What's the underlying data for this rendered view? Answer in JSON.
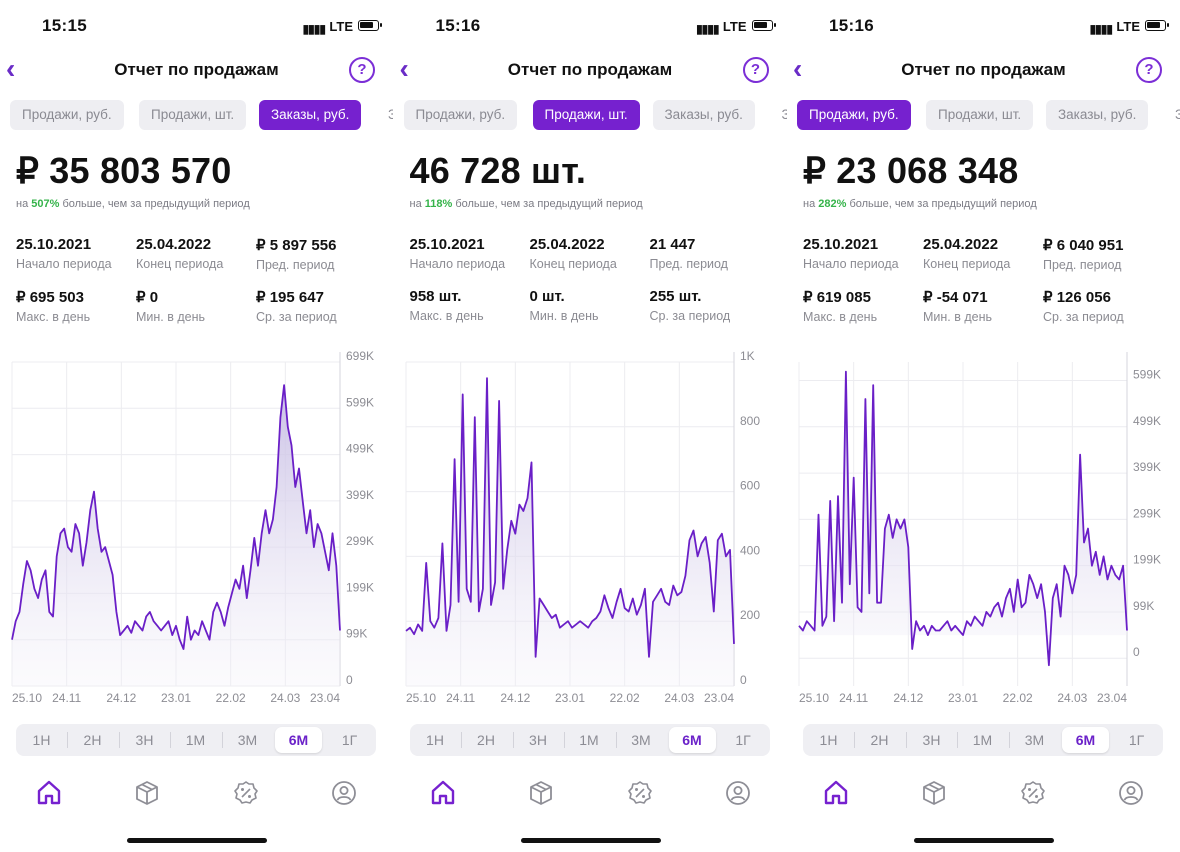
{
  "screens": [
    {
      "time": "15:15",
      "network": "LTE",
      "title": "Отчет по продажам",
      "help": "?",
      "tabs": [
        "Продажи, руб.",
        "Продажи, шт.",
        "Заказы, руб.",
        "З"
      ],
      "active_tab": 2,
      "big_value": "₽ 35 803 570",
      "delta_prefix": "на ",
      "delta_pct": "507%",
      "delta_suffix": " больше, чем за предыдущий период",
      "stats": [
        {
          "value": "25.10.2021",
          "label": "Начало периода"
        },
        {
          "value": "25.04.2022",
          "label": "Конец периода"
        },
        {
          "value": "₽ 5 897 556",
          "label": "Пред. период"
        },
        {
          "value": "₽ 695 503",
          "label": "Макс. в день"
        },
        {
          "value": "₽ 0",
          "label": "Мин. в день"
        },
        {
          "value": "₽ 195 647",
          "label": "Ср. за период"
        }
      ],
      "periods": [
        "1Н",
        "2Н",
        "3Н",
        "1М",
        "3М",
        "6М",
        "1Г"
      ],
      "active_period": 5,
      "chart_data": {
        "type": "area",
        "x_ticks": [
          "25.10",
          "24.11",
          "24.12",
          "23.01",
          "22.02",
          "24.03",
          "23.04"
        ],
        "y_ticks": [
          "0",
          "99K",
          "199K",
          "299K",
          "399K",
          "499K",
          "599K",
          "699K"
        ],
        "ylim": [
          0,
          700
        ],
        "y_unit": "K",
        "values": [
          100,
          140,
          160,
          220,
          270,
          250,
          210,
          190,
          230,
          250,
          160,
          150,
          280,
          330,
          340,
          300,
          290,
          350,
          330,
          260,
          310,
          380,
          420,
          340,
          290,
          300,
          270,
          240,
          160,
          110,
          120,
          130,
          115,
          140,
          130,
          120,
          150,
          160,
          140,
          130,
          120,
          130,
          140,
          110,
          130,
          100,
          80,
          150,
          100,
          120,
          110,
          140,
          120,
          100,
          160,
          180,
          160,
          130,
          170,
          200,
          230,
          210,
          260,
          190,
          250,
          320,
          260,
          330,
          380,
          330,
          360,
          430,
          580,
          650,
          560,
          520,
          430,
          470,
          400,
          330,
          380,
          300,
          350,
          330,
          290,
          250,
          330,
          260,
          120
        ]
      }
    },
    {
      "time": "15:16",
      "network": "LTE",
      "title": "Отчет по продажам",
      "help": "?",
      "tabs": [
        "Продажи, руб.",
        "Продажи, шт.",
        "Заказы, руб.",
        "З"
      ],
      "active_tab": 1,
      "big_value": "46 728 шт.",
      "delta_prefix": "на ",
      "delta_pct": "118%",
      "delta_suffix": " больше, чем за предыдущий период",
      "stats": [
        {
          "value": "25.10.2021",
          "label": "Начало периода"
        },
        {
          "value": "25.04.2022",
          "label": "Конец периода"
        },
        {
          "value": "21 447",
          "label": "Пред. период"
        },
        {
          "value": "958 шт.",
          "label": "Макс. в день"
        },
        {
          "value": "0 шт.",
          "label": "Мин. в день"
        },
        {
          "value": "255 шт.",
          "label": "Ср. за период"
        }
      ],
      "periods": [
        "1Н",
        "2Н",
        "3Н",
        "1М",
        "3М",
        "6М",
        "1Г"
      ],
      "active_period": 5,
      "chart_data": {
        "type": "area",
        "x_ticks": [
          "25.10",
          "24.11",
          "24.12",
          "23.01",
          "22.02",
          "24.03",
          "23.04"
        ],
        "y_ticks": [
          "0",
          "200",
          "400",
          "600",
          "800",
          "1K"
        ],
        "ylim": [
          0,
          1000
        ],
        "values": [
          170,
          180,
          160,
          190,
          170,
          380,
          200,
          180,
          210,
          440,
          170,
          250,
          700,
          260,
          900,
          300,
          260,
          830,
          230,
          300,
          950,
          250,
          320,
          880,
          300,
          420,
          510,
          470,
          560,
          540,
          580,
          690,
          90,
          270,
          250,
          230,
          210,
          220,
          180,
          190,
          200,
          180,
          190,
          200,
          190,
          180,
          200,
          210,
          230,
          280,
          240,
          210,
          260,
          300,
          240,
          230,
          270,
          220,
          250,
          300,
          90,
          260,
          280,
          300,
          260,
          250,
          310,
          280,
          290,
          340,
          450,
          480,
          400,
          440,
          460,
          380,
          230,
          450,
          470,
          400,
          420,
          130
        ]
      }
    },
    {
      "time": "15:16",
      "network": "LTE",
      "title": "Отчет по продажам",
      "help": "?",
      "tabs": [
        "Продажи, руб.",
        "Продажи, шт.",
        "Заказы, руб.",
        "З"
      ],
      "active_tab": 0,
      "big_value": "₽ 23 068 348",
      "delta_prefix": "на ",
      "delta_pct": "282%",
      "delta_suffix": " больше, чем за предыдущий период",
      "stats": [
        {
          "value": "25.10.2021",
          "label": "Начало периода"
        },
        {
          "value": "25.04.2022",
          "label": "Конец периода"
        },
        {
          "value": "₽ 6 040 951",
          "label": "Пред. период"
        },
        {
          "value": "₽ 619 085",
          "label": "Макс. в день"
        },
        {
          "value": "₽ -54 071",
          "label": "Мин. в день"
        },
        {
          "value": "₽ 126 056",
          "label": "Ср. за период"
        }
      ],
      "periods": [
        "1Н",
        "2Н",
        "3Н",
        "1М",
        "3М",
        "6М",
        "1Г"
      ],
      "active_period": 5,
      "chart_data": {
        "type": "area",
        "x_ticks": [
          "25.10",
          "24.11",
          "24.12",
          "23.01",
          "22.02",
          "24.03",
          "23.04"
        ],
        "y_ticks": [
          "0",
          "99K",
          "199K",
          "299K",
          "399K",
          "499K",
          "599K"
        ],
        "ylim": [
          -60,
          640
        ],
        "baseline": 50,
        "y_unit": "K",
        "values": [
          70,
          60,
          80,
          70,
          60,
          310,
          70,
          90,
          340,
          80,
          350,
          120,
          619,
          160,
          390,
          110,
          100,
          560,
          140,
          590,
          120,
          120,
          280,
          310,
          260,
          300,
          280,
          300,
          240,
          20,
          80,
          60,
          70,
          50,
          70,
          60,
          60,
          70,
          80,
          60,
          70,
          60,
          50,
          80,
          70,
          90,
          80,
          70,
          100,
          90,
          110,
          120,
          90,
          130,
          150,
          100,
          170,
          110,
          120,
          180,
          160,
          130,
          160,
          100,
          -15,
          130,
          160,
          90,
          200,
          180,
          140,
          180,
          440,
          250,
          280,
          200,
          230,
          180,
          220,
          170,
          200,
          180,
          170,
          200,
          60
        ]
      }
    }
  ]
}
